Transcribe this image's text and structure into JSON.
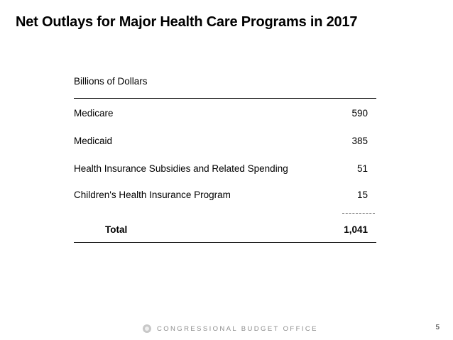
{
  "slide": {
    "title": "Net Outlays for Major Health Care Programs in 2017",
    "footer_org": "CONGRESSIONAL BUDGET OFFICE",
    "page_number": "5",
    "logo": "cbo-seal-icon"
  },
  "chart_data": {
    "type": "table",
    "title": "Net Outlays for Major Health Care Programs in 2017",
    "unit_label": "Billions of Dollars",
    "rows": [
      {
        "label": "Medicare",
        "value": "590"
      },
      {
        "label": "Medicaid",
        "value": "385"
      },
      {
        "label": "Health Insurance Subsidies and Related Spending",
        "value": "51"
      },
      {
        "label": "Children's Health Insurance Program",
        "value": "15"
      }
    ],
    "total": {
      "label": "Total",
      "value": "1,041"
    }
  }
}
